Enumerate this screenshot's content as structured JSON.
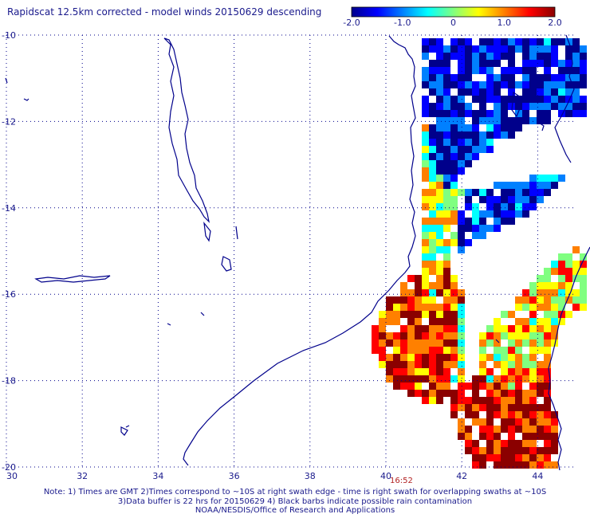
{
  "title": "Rapidscat 12.5km corrected - model winds 20150629 descending",
  "colorbar": {
    "ticks": [
      -2.0,
      -1.0,
      0,
      1.0,
      2.0
    ],
    "tick_labels": [
      "-2.0",
      "-1.0",
      "0",
      "1.0",
      "2.0"
    ],
    "colors": [
      "#00008b",
      "#0000ff",
      "#0080ff",
      "#00ffff",
      "#80ff80",
      "#ffff00",
      "#ff8000",
      "#ff0000",
      "#8b0000"
    ]
  },
  "map": {
    "lon_range": [
      30,
      45
    ],
    "lat_range": [
      -20,
      -10
    ],
    "lon_ticks": [
      "30",
      "32",
      "34",
      "36",
      "38",
      "40",
      "42",
      "44"
    ],
    "lat_ticks": [
      "-10",
      "-12",
      "-14",
      "-16",
      "-18",
      "-20"
    ],
    "grid": true,
    "land_outline_color": "#00008b",
    "grid_color": "#00008b"
  },
  "time_label": "16:52",
  "notes": [
    "Note: 1) Times are GMT 2)Times correspond to ~10S at right swath edge - time is right swath for overlapping swaths at ~10S",
    "3)Data buffer is 22 hrs for 20150629 4) Black barbs indicate possible rain contamination",
    "NOAA/NESDIS/Office of Research and Applications"
  ]
}
